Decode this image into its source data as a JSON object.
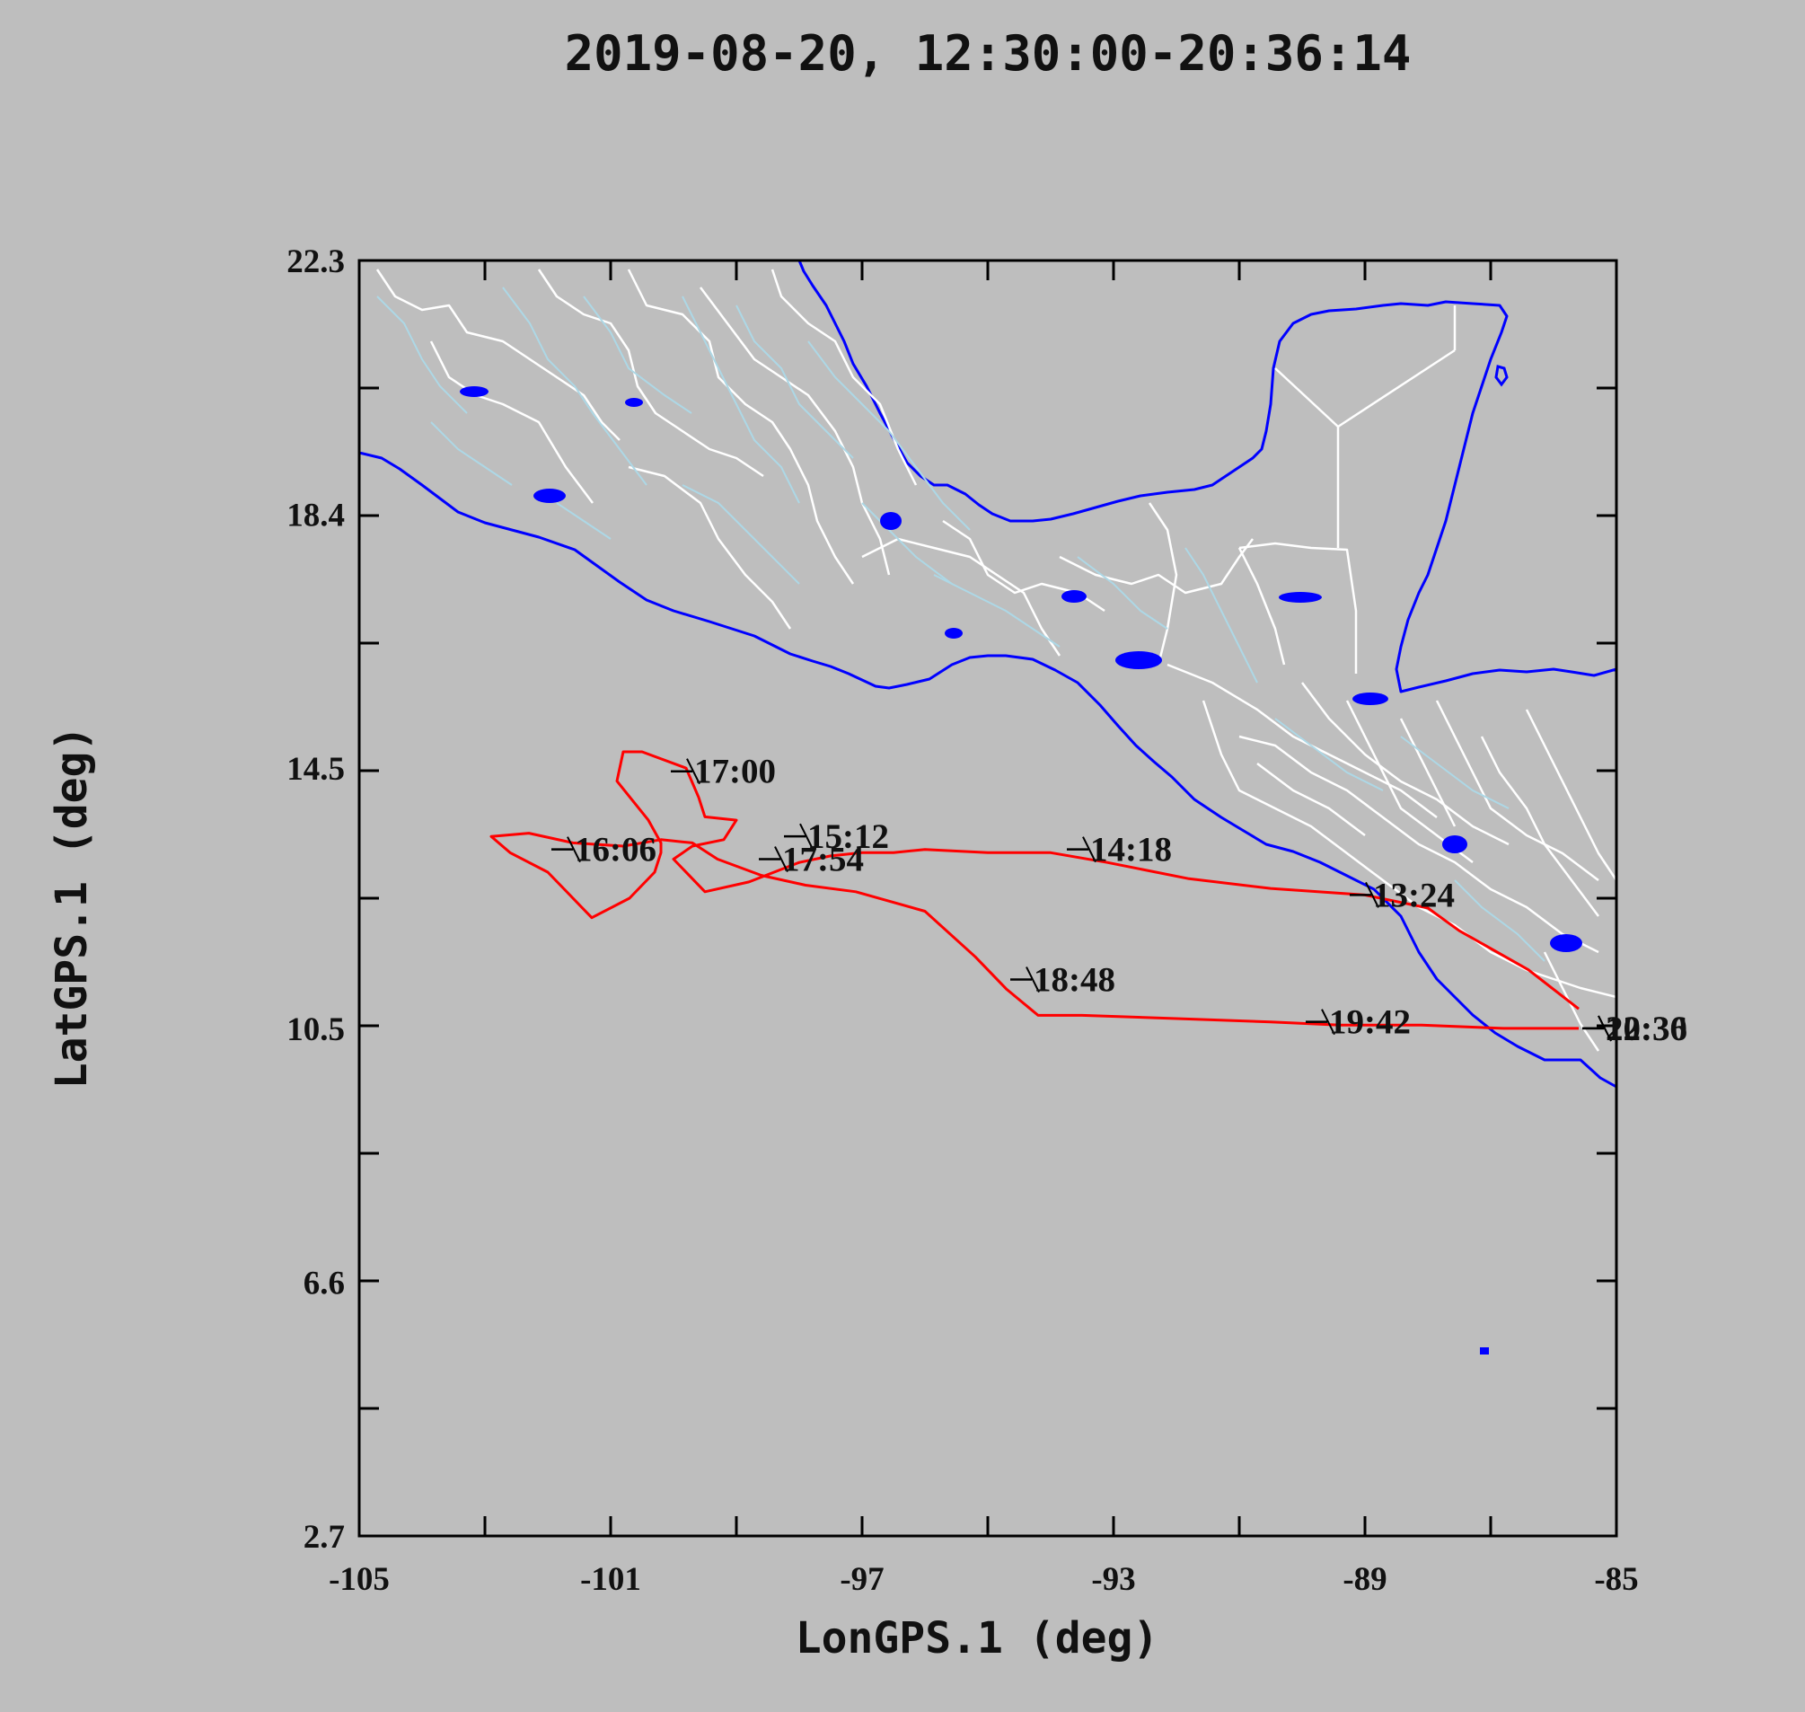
{
  "title": "2019-08-20, 12:30:00-20:36:14",
  "chart_data": {
    "type": "line",
    "xlabel": "LonGPS.1 (deg)",
    "ylabel": "LatGPS.1 (deg)",
    "xlim": [
      -105,
      -85
    ],
    "ylim": [
      2.7,
      22.3
    ],
    "xticks": [
      -105,
      -101,
      -97,
      -93,
      -89,
      -85
    ],
    "xtick_labels": [
      "-105",
      "-101",
      "-97",
      "-93",
      "-89",
      "-85"
    ],
    "yticks": [
      2.7,
      6.6,
      10.5,
      14.5,
      18.4,
      22.3
    ],
    "ytick_labels": [
      "2.7",
      "6.6",
      "10.5",
      "14.5",
      "18.4",
      "22.3"
    ],
    "colors": {
      "track": "#ff0000",
      "coastline": "#0000ff",
      "borders": "#ffffff",
      "rivers": "#add8e6",
      "background": "#bebebe"
    },
    "series": [
      {
        "x": [
          -85.6,
          -86.4,
          -87.5,
          -88.0,
          -89.0,
          -90.5,
          -91.8,
          -93.1,
          -94.0,
          -95.0,
          -96.0,
          -96.5,
          -97.0,
          -97.5,
          -98.0,
          -98.8,
          -99.5,
          -100.0,
          -99.7,
          -99.2,
          -99.0,
          -99.5,
          -99.6,
          -99.8,
          -100.5,
          -100.8,
          -100.9,
          -100.4,
          -100.2,
          -100.2,
          -100.3,
          -100.7,
          -101.3,
          -102.0,
          -102.6,
          -102.9,
          -102.3,
          -101.6,
          -100.8,
          -100.2,
          -99.7,
          -99.3,
          -98.6,
          -97.9,
          -97.1,
          -96.0,
          -95.2,
          -94.7,
          -94.2,
          -93.5,
          -92.0,
          -90.5,
          -89.4,
          -88.1,
          -86.8,
          -85.6
        ],
        "y": [
          10.8,
          11.4,
          12.0,
          12.35,
          12.55,
          12.65,
          12.8,
          13.05,
          13.2,
          13.2,
          13.25,
          13.2,
          13.2,
          13.15,
          13.05,
          12.75,
          12.6,
          13.1,
          13.3,
          13.4,
          13.7,
          13.75,
          14.05,
          14.5,
          14.75,
          14.75,
          14.3,
          13.7,
          13.35,
          13.2,
          12.9,
          12.5,
          12.2,
          12.9,
          13.2,
          13.45,
          13.5,
          13.35,
          13.3,
          13.4,
          13.35,
          13.1,
          12.85,
          12.7,
          12.6,
          12.3,
          11.6,
          11.1,
          10.7,
          10.7,
          10.65,
          10.6,
          10.55,
          10.55,
          10.5,
          10.5
        ]
      }
    ],
    "time_labels": [
      {
        "text": "13:24",
        "lon": -88.9,
        "lat": 12.55
      },
      {
        "text": "14:18",
        "lon": -93.4,
        "lat": 13.25
      },
      {
        "text": "15:12",
        "lon": -97.9,
        "lat": 13.45
      },
      {
        "text": "16:06",
        "lon": -101.6,
        "lat": 13.25
      },
      {
        "text": "17:00",
        "lon": -99.7,
        "lat": 14.45
      },
      {
        "text": "17:54",
        "lon": -98.3,
        "lat": 13.1
      },
      {
        "text": "18:48",
        "lon": -94.3,
        "lat": 11.25
      },
      {
        "text": "19:42",
        "lon": -89.6,
        "lat": 10.6
      },
      {
        "text": "20:36",
        "lon": -85.2,
        "lat": 10.5
      },
      {
        "text": "12:30",
        "lon": -85.2,
        "lat": 10.5
      }
    ]
  }
}
